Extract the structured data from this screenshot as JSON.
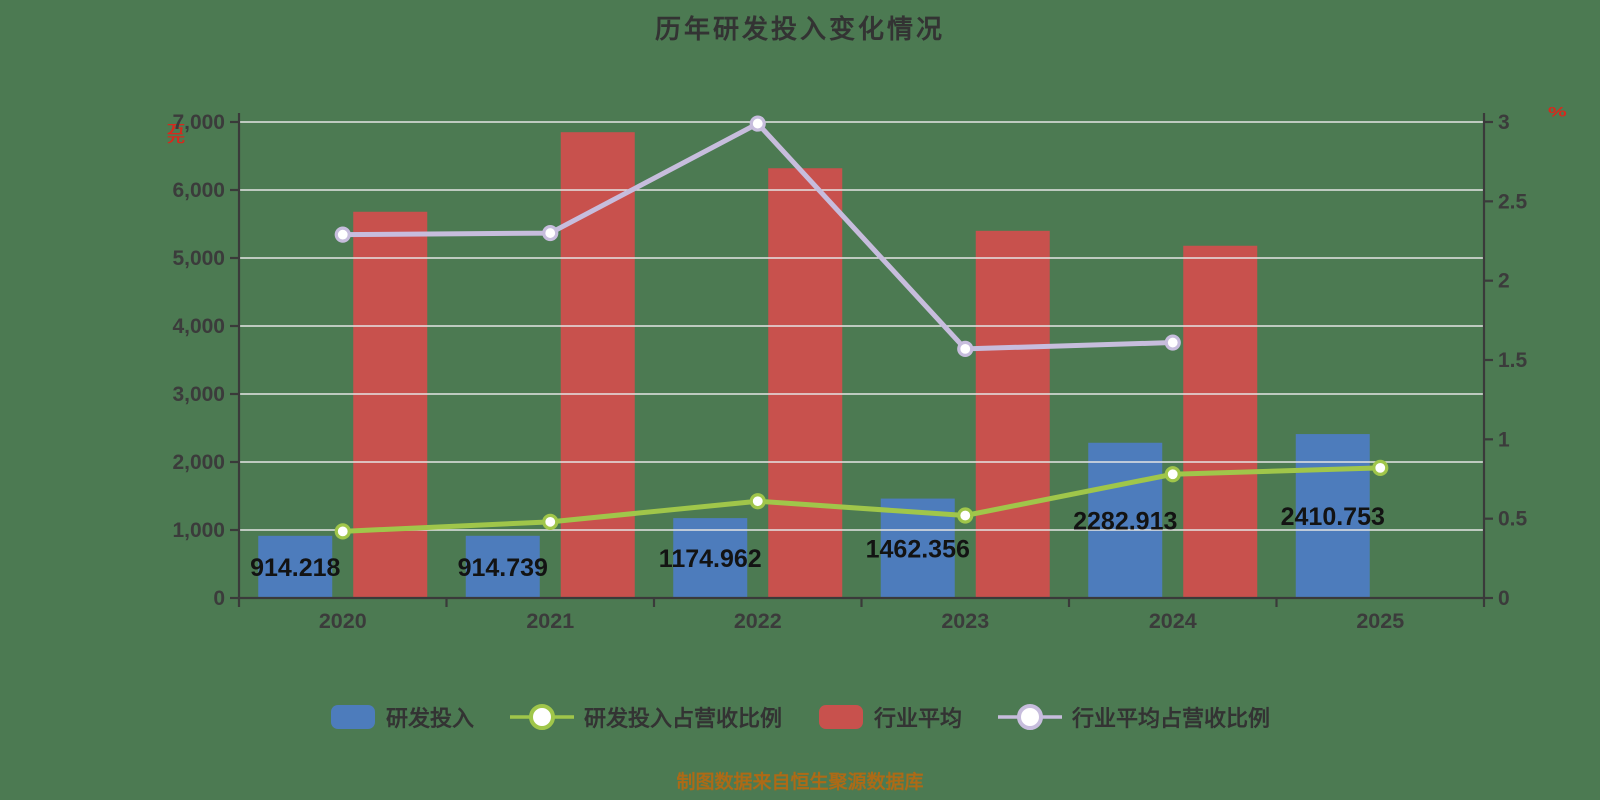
{
  "title": "历年研发投入变化情况",
  "source_note": "制图数据来自恒生聚源数据库",
  "axis_units": {
    "left": "万元",
    "right": "%"
  },
  "colors": {
    "background": "#4c7a52",
    "title_text": "#333333",
    "axis_text": "#3b3b3b",
    "axis_line": "#3a3a3a",
    "grid_line": "#e4e4e4",
    "bar_label_text": "#131313",
    "unit_text": "#d8281c",
    "source_text": "#ad6a16",
    "legend_text": "#333333",
    "marker_fill": "#ffffff"
  },
  "chart_data": {
    "type": "combo bar + line, dual axis",
    "categories": [
      "2020",
      "2021",
      "2022",
      "2023",
      "2024",
      "2025"
    ],
    "series": [
      {
        "name": "研发投入",
        "type": "bar",
        "axis": "left",
        "color": "#4d7cbc",
        "data_labels": true,
        "values": [
          914.218,
          914.739,
          1174.962,
          1462.356,
          2282.913,
          2410.753
        ]
      },
      {
        "name": "研发投入占营收比例",
        "type": "line",
        "axis": "right",
        "color": "#a0c64a",
        "marker": "white-circle",
        "values": [
          0.42,
          0.48,
          0.61,
          0.52,
          0.78,
          0.82
        ]
      },
      {
        "name": "行业平均",
        "type": "bar",
        "axis": "left",
        "color": "#c8514d",
        "data_labels": false,
        "values": [
          5680,
          6850,
          6320,
          5400,
          5180,
          null
        ]
      },
      {
        "name": "行业平均占营收比例",
        "type": "line",
        "axis": "right",
        "color": "#c7bddd",
        "marker": "white-circle",
        "values": [
          2.29,
          2.3,
          2.99,
          1.57,
          1.61,
          null
        ]
      }
    ],
    "left_axis": {
      "min": 0,
      "max": 7000,
      "tick_step": 1000,
      "tick_labels": [
        "0",
        "1,000",
        "2,000",
        "3,000",
        "4,000",
        "5,000",
        "6,000",
        "7,000"
      ]
    },
    "right_axis": {
      "min": 0,
      "max": 3,
      "tick_step": 0.5,
      "tick_labels": [
        "0",
        "0.5",
        "1",
        "1.5",
        "2",
        "2.5",
        "3"
      ]
    },
    "grid": true,
    "grid_over_bars": true,
    "legend_position": "bottom"
  }
}
